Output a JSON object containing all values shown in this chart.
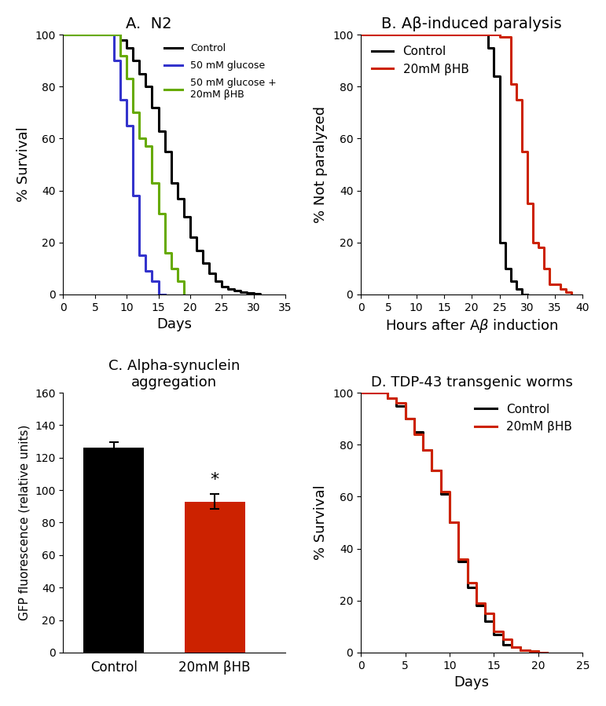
{
  "panel_A_title": "A.  N2",
  "panel_B_title": "B. Aβ-induced paralysis",
  "panel_C_title": "C. Alpha-synuclein\naggregation",
  "panel_D_title": "D. TDP-43 transgenic worms",
  "A_control_x": [
    0,
    9,
    9,
    10,
    10,
    11,
    11,
    12,
    12,
    13,
    13,
    14,
    14,
    15,
    15,
    16,
    16,
    17,
    17,
    18,
    18,
    19,
    19,
    20,
    20,
    21,
    21,
    22,
    22,
    23,
    23,
    24,
    24,
    25,
    25,
    26,
    26,
    27,
    27,
    28,
    28,
    29,
    29,
    30,
    30,
    31,
    31
  ],
  "A_control_y": [
    100,
    100,
    98,
    98,
    95,
    95,
    90,
    90,
    85,
    85,
    80,
    80,
    72,
    72,
    63,
    63,
    55,
    55,
    43,
    43,
    37,
    37,
    30,
    30,
    22,
    22,
    17,
    17,
    12,
    12,
    8,
    8,
    5,
    5,
    3,
    3,
    2,
    2,
    1.5,
    1.5,
    1,
    1,
    0.5,
    0.5,
    0.3,
    0.3,
    0
  ],
  "A_glucose_x": [
    0,
    8,
    8,
    9,
    9,
    10,
    10,
    11,
    11,
    12,
    12,
    13,
    13,
    14,
    14,
    15,
    15,
    16,
    16
  ],
  "A_glucose_y": [
    100,
    100,
    90,
    90,
    75,
    75,
    65,
    65,
    38,
    38,
    15,
    15,
    9,
    9,
    5,
    5,
    0,
    0,
    0
  ],
  "A_glucose_bhb_x": [
    0,
    9,
    9,
    10,
    10,
    11,
    11,
    12,
    12,
    13,
    13,
    14,
    14,
    15,
    15,
    16,
    16,
    17,
    17,
    18,
    18,
    19,
    19
  ],
  "A_glucose_bhb_y": [
    100,
    100,
    92,
    92,
    83,
    83,
    70,
    70,
    60,
    60,
    57,
    57,
    43,
    43,
    31,
    31,
    16,
    16,
    10,
    10,
    5,
    5,
    0
  ],
  "B_control_x": [
    0,
    23,
    23,
    24,
    24,
    25,
    25,
    26,
    26,
    27,
    27,
    28,
    28,
    29,
    29,
    30,
    30
  ],
  "B_control_y": [
    100,
    100,
    95,
    95,
    84,
    84,
    20,
    20,
    10,
    10,
    5,
    5,
    2,
    2,
    0,
    0,
    0
  ],
  "B_bhb_x": [
    0,
    25,
    25,
    27,
    27,
    28,
    28,
    29,
    29,
    30,
    30,
    31,
    31,
    32,
    32,
    33,
    33,
    34,
    34,
    36,
    36,
    37,
    37,
    38,
    38
  ],
  "B_bhb_y": [
    100,
    100,
    99,
    99,
    81,
    81,
    75,
    75,
    55,
    55,
    35,
    35,
    20,
    20,
    18,
    18,
    10,
    10,
    4,
    4,
    2,
    2,
    1,
    1,
    0
  ],
  "C_categories": [
    "Control",
    "20mM βHB"
  ],
  "C_values": [
    126,
    93
  ],
  "C_errors": [
    3.5,
    4.5
  ],
  "C_colors": [
    "#000000",
    "#cc2200"
  ],
  "C_ylabel": "GFP fluorescence (relative units)",
  "C_ylim": [
    0,
    160
  ],
  "C_yticks": [
    0,
    20,
    40,
    60,
    80,
    100,
    120,
    140,
    160
  ],
  "D_control_x": [
    0,
    3,
    3,
    4,
    4,
    5,
    5,
    6,
    6,
    7,
    7,
    8,
    8,
    9,
    9,
    10,
    10,
    11,
    11,
    12,
    12,
    13,
    13,
    14,
    14,
    15,
    15,
    16,
    16,
    17,
    17,
    18,
    18,
    19,
    19,
    20,
    20,
    21,
    21
  ],
  "D_control_y": [
    100,
    100,
    98,
    98,
    95,
    95,
    90,
    90,
    85,
    85,
    78,
    78,
    70,
    70,
    61,
    61,
    50,
    50,
    35,
    35,
    25,
    25,
    18,
    18,
    12,
    12,
    7,
    7,
    3,
    3,
    2,
    2,
    1,
    1,
    0.5,
    0.5,
    0,
    0,
    0
  ],
  "D_bhb_x": [
    0,
    3,
    3,
    4,
    4,
    5,
    5,
    6,
    6,
    7,
    7,
    8,
    8,
    9,
    9,
    10,
    10,
    11,
    11,
    12,
    12,
    13,
    13,
    14,
    14,
    15,
    15,
    16,
    16,
    17,
    17,
    18,
    18,
    19,
    19,
    20,
    20,
    21,
    21
  ],
  "D_bhb_y": [
    100,
    100,
    98,
    98,
    96,
    96,
    90,
    90,
    84,
    84,
    78,
    78,
    70,
    70,
    62,
    62,
    50,
    50,
    36,
    36,
    27,
    27,
    19,
    19,
    15,
    15,
    8,
    8,
    5,
    5,
    2,
    2,
    1,
    1,
    0.5,
    0.5,
    0,
    0,
    0
  ],
  "line_width": 2.2,
  "color_black": "#000000",
  "color_blue": "#3333cc",
  "color_green": "#66aa00",
  "color_red": "#cc2200"
}
